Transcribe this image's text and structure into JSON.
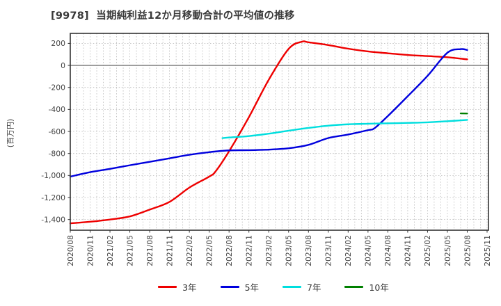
{
  "chart_data": {
    "type": "line",
    "title": "[9978]  当期純利益12か月移動合計の平均値の推移",
    "ylabel": "(百万円)",
    "x_labels": [
      "2020/08",
      "2020/11",
      "2021/02",
      "2021/05",
      "2021/08",
      "2021/11",
      "2022/02",
      "2022/05",
      "2022/08",
      "2022/11",
      "2023/02",
      "2023/05",
      "2023/08",
      "2023/11",
      "2024/02",
      "2024/05",
      "2024/08",
      "2024/11",
      "2025/02",
      "2025/05",
      "2025/08",
      "2025/11"
    ],
    "ylim": [
      -1497,
      291
    ],
    "yticks": [
      {
        "value": 200,
        "label": "200"
      },
      {
        "value": 0,
        "label": "0"
      },
      {
        "value": -200,
        "label": "-200"
      },
      {
        "value": -400,
        "label": "-400"
      },
      {
        "value": -600,
        "label": "-600"
      },
      {
        "value": -800,
        "label": "-800"
      },
      {
        "value": -1000,
        "label": "-1,000"
      },
      {
        "value": -1200,
        "label": "-1,200"
      },
      {
        "value": -1400,
        "label": "-1,400"
      }
    ],
    "grid": "dotted gray; vertical minor gridlines monthly; solid line at 0",
    "legend_position": "bottom",
    "series": [
      {
        "name": "3年",
        "color": "#ee0000",
        "points": [
          [
            "2020/08",
            -1435
          ],
          [
            "2020/11",
            -1420
          ],
          [
            "2021/02",
            -1400
          ],
          [
            "2021/05",
            -1372
          ],
          [
            "2021/08",
            -1310
          ],
          [
            "2021/11",
            -1240
          ],
          [
            "2022/02",
            -1110
          ],
          [
            "2022/05",
            -1010
          ],
          [
            "2022/06",
            -960
          ],
          [
            "2022/08",
            -780
          ],
          [
            "2022/11",
            -470
          ],
          [
            "2023/02",
            -130
          ],
          [
            "2023/05",
            150
          ],
          [
            "2023/07",
            215
          ],
          [
            "2023/08",
            210
          ],
          [
            "2023/11",
            185
          ],
          [
            "2024/02",
            152
          ],
          [
            "2024/05",
            127
          ],
          [
            "2024/08",
            110
          ],
          [
            "2024/11",
            95
          ],
          [
            "2025/02",
            85
          ],
          [
            "2025/05",
            74
          ],
          [
            "2025/08",
            55
          ]
        ]
      },
      {
        "name": "5年",
        "color": "#0000dd",
        "points": [
          [
            "2020/08",
            -1010
          ],
          [
            "2020/11",
            -970
          ],
          [
            "2021/02",
            -940
          ],
          [
            "2021/05",
            -907
          ],
          [
            "2021/08",
            -876
          ],
          [
            "2021/11",
            -844
          ],
          [
            "2022/02",
            -812
          ],
          [
            "2022/05",
            -788
          ],
          [
            "2022/08",
            -772
          ],
          [
            "2022/11",
            -770
          ],
          [
            "2023/02",
            -765
          ],
          [
            "2023/05",
            -753
          ],
          [
            "2023/08",
            -722
          ],
          [
            "2023/11",
            -660
          ],
          [
            "2024/02",
            -628
          ],
          [
            "2024/05",
            -588
          ],
          [
            "2024/06",
            -570
          ],
          [
            "2024/08",
            -460
          ],
          [
            "2024/11",
            -280
          ],
          [
            "2025/02",
            -95
          ],
          [
            "2025/05",
            115
          ],
          [
            "2025/07",
            148
          ],
          [
            "2025/08",
            140
          ]
        ]
      },
      {
        "name": "7年",
        "color": "#00dede",
        "points": [
          [
            "2022/07",
            -660
          ],
          [
            "2022/08",
            -655
          ],
          [
            "2022/11",
            -642
          ],
          [
            "2023/02",
            -620
          ],
          [
            "2023/05",
            -593
          ],
          [
            "2023/08",
            -568
          ],
          [
            "2023/11",
            -547
          ],
          [
            "2024/02",
            -535
          ],
          [
            "2024/05",
            -530
          ],
          [
            "2024/08",
            -526
          ],
          [
            "2024/11",
            -522
          ],
          [
            "2025/02",
            -517
          ],
          [
            "2025/05",
            -507
          ],
          [
            "2025/08",
            -495
          ]
        ]
      },
      {
        "name": "10年",
        "color": "#008000",
        "points": [
          [
            "2025/07",
            -436
          ],
          [
            "2025/08",
            -437
          ]
        ]
      }
    ]
  }
}
